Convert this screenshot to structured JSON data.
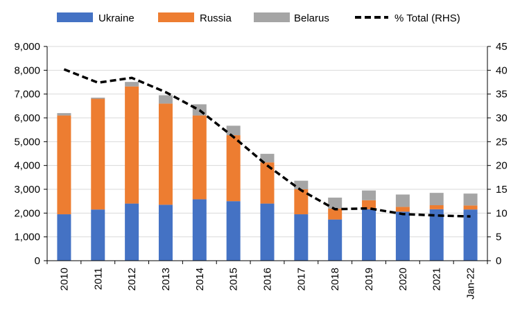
{
  "chart_data": {
    "type": "bar",
    "stacked": true,
    "categories": [
      "2010",
      "2011",
      "2012",
      "2013",
      "2014",
      "2015",
      "2016",
      "2017",
      "2018",
      "2019",
      "2020",
      "2021",
      "Jan-22"
    ],
    "series": [
      {
        "name": "Ukraine",
        "color": "#4472C4",
        "values": [
          1950,
          2150,
          2400,
          2350,
          2580,
          2500,
          2400,
          1950,
          1730,
          2160,
          2060,
          2160,
          2150
        ]
      },
      {
        "name": "Russia",
        "color": "#ED7D31",
        "values": [
          4150,
          4650,
          4920,
          4250,
          3520,
          2770,
          1730,
          1050,
          460,
          380,
          200,
          170,
          170
        ]
      },
      {
        "name": "Belarus",
        "color": "#A5A5A5",
        "values": [
          100,
          50,
          190,
          350,
          470,
          400,
          360,
          360,
          460,
          410,
          520,
          520,
          500
        ]
      }
    ],
    "line": {
      "name": "% Total (RHS)",
      "color": "#000000",
      "style": "dashed",
      "axis": "right",
      "values": [
        40.2,
        37.4,
        38.4,
        35.4,
        31.6,
        26.0,
        20.0,
        14.8,
        10.8,
        11.0,
        9.8,
        9.5,
        9.3
      ]
    },
    "y_left": {
      "min": 0,
      "max": 9000,
      "step": 1000,
      "ticks": [
        "0",
        "1,000",
        "2,000",
        "3,000",
        "4,000",
        "5,000",
        "6,000",
        "7,000",
        "8,000",
        "9,000"
      ]
    },
    "y_right": {
      "min": 0,
      "max": 45,
      "step": 5,
      "ticks": [
        "0",
        "5",
        "10",
        "15",
        "20",
        "25",
        "30",
        "35",
        "40",
        "45"
      ]
    },
    "grid": true,
    "legend_position": "top"
  },
  "legend": {
    "ukraine": "Ukraine",
    "russia": "Russia",
    "belarus": "Belarus",
    "total": "% Total (RHS)"
  }
}
